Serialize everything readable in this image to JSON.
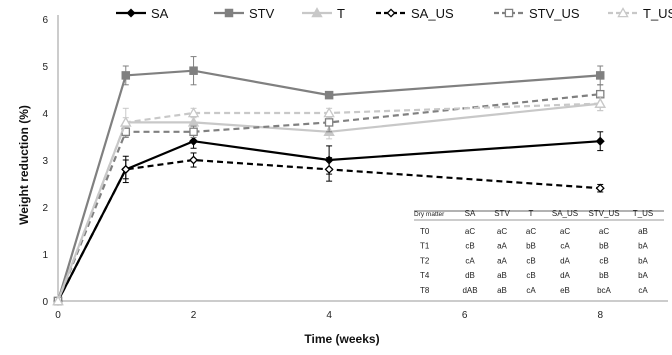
{
  "chart_data": {
    "type": "line",
    "xlabel": "Time (weeks)",
    "ylabel": "Weight reduction (%)",
    "xlim": [
      0,
      9
    ],
    "ylim": [
      0,
      6
    ],
    "x_ticks": [
      0,
      2,
      4,
      6,
      8
    ],
    "y_ticks": [
      0,
      1,
      2,
      3,
      4,
      5,
      6
    ],
    "grid": false,
    "legend_position": "top",
    "x": [
      0,
      1,
      2,
      4,
      8
    ],
    "series": [
      {
        "name": "SA",
        "values": [
          0,
          2.8,
          3.4,
          3.0,
          3.4
        ],
        "errors": [
          0,
          0.28,
          0.15,
          0.3,
          0.2
        ],
        "color": "#000000",
        "dash": "solid",
        "marker": "diamond",
        "fill": "#000000"
      },
      {
        "name": "STV",
        "values": [
          0,
          4.8,
          4.9,
          4.38,
          4.8
        ],
        "errors": [
          0,
          0.2,
          0.3,
          0.05,
          0.2
        ],
        "color": "#808080",
        "dash": "solid",
        "marker": "square",
        "fill": "#808080"
      },
      {
        "name": "T",
        "values": [
          0,
          3.8,
          3.8,
          3.6,
          4.2
        ],
        "errors": [
          0,
          0.3,
          0.2,
          0.15,
          0.15
        ],
        "color": "#c8c8c8",
        "dash": "solid",
        "marker": "triangle",
        "fill": "#c8c8c8"
      },
      {
        "name": "SA_US",
        "values": [
          0,
          2.8,
          3.0,
          2.8,
          2.4
        ],
        "errors": [
          0,
          0.2,
          0.15,
          0.25,
          0.08
        ],
        "color": "#000000",
        "dash": "dashed",
        "marker": "diamond",
        "fill": "#ffffff"
      },
      {
        "name": "STV_US",
        "values": [
          0,
          3.6,
          3.6,
          3.8,
          4.4
        ],
        "errors": [
          0,
          0.12,
          0.12,
          0.2,
          0.2
        ],
        "color": "#808080",
        "dash": "dashed",
        "marker": "square",
        "fill": "#ffffff"
      },
      {
        "name": "T_US",
        "values": [
          0,
          3.8,
          4.0,
          4.0,
          4.2
        ],
        "errors": [
          0,
          0.1,
          0.1,
          0.1,
          0.15
        ],
        "color": "#c8c8c8",
        "dash": "dashed",
        "marker": "triangle",
        "fill": "#ffffff"
      }
    ],
    "table": {
      "headers": [
        "Dry matter",
        "SA",
        "STV",
        "T",
        "SA_US",
        "STV_US",
        "T_US"
      ],
      "rows": [
        [
          "T0",
          "aC",
          "aC",
          "aC",
          "aC",
          "aC",
          "aB"
        ],
        [
          "T1",
          "cB",
          "aA",
          "bB",
          "cA",
          "bB",
          "bA"
        ],
        [
          "T2",
          "cA",
          "aA",
          "cB",
          "dA",
          "cB",
          "bA"
        ],
        [
          "T4",
          "dB",
          "aB",
          "cB",
          "dA",
          "bB",
          "bA"
        ],
        [
          "T8",
          "dAB",
          "aB",
          "cA",
          "eB",
          "bcA",
          "cA"
        ]
      ]
    }
  }
}
